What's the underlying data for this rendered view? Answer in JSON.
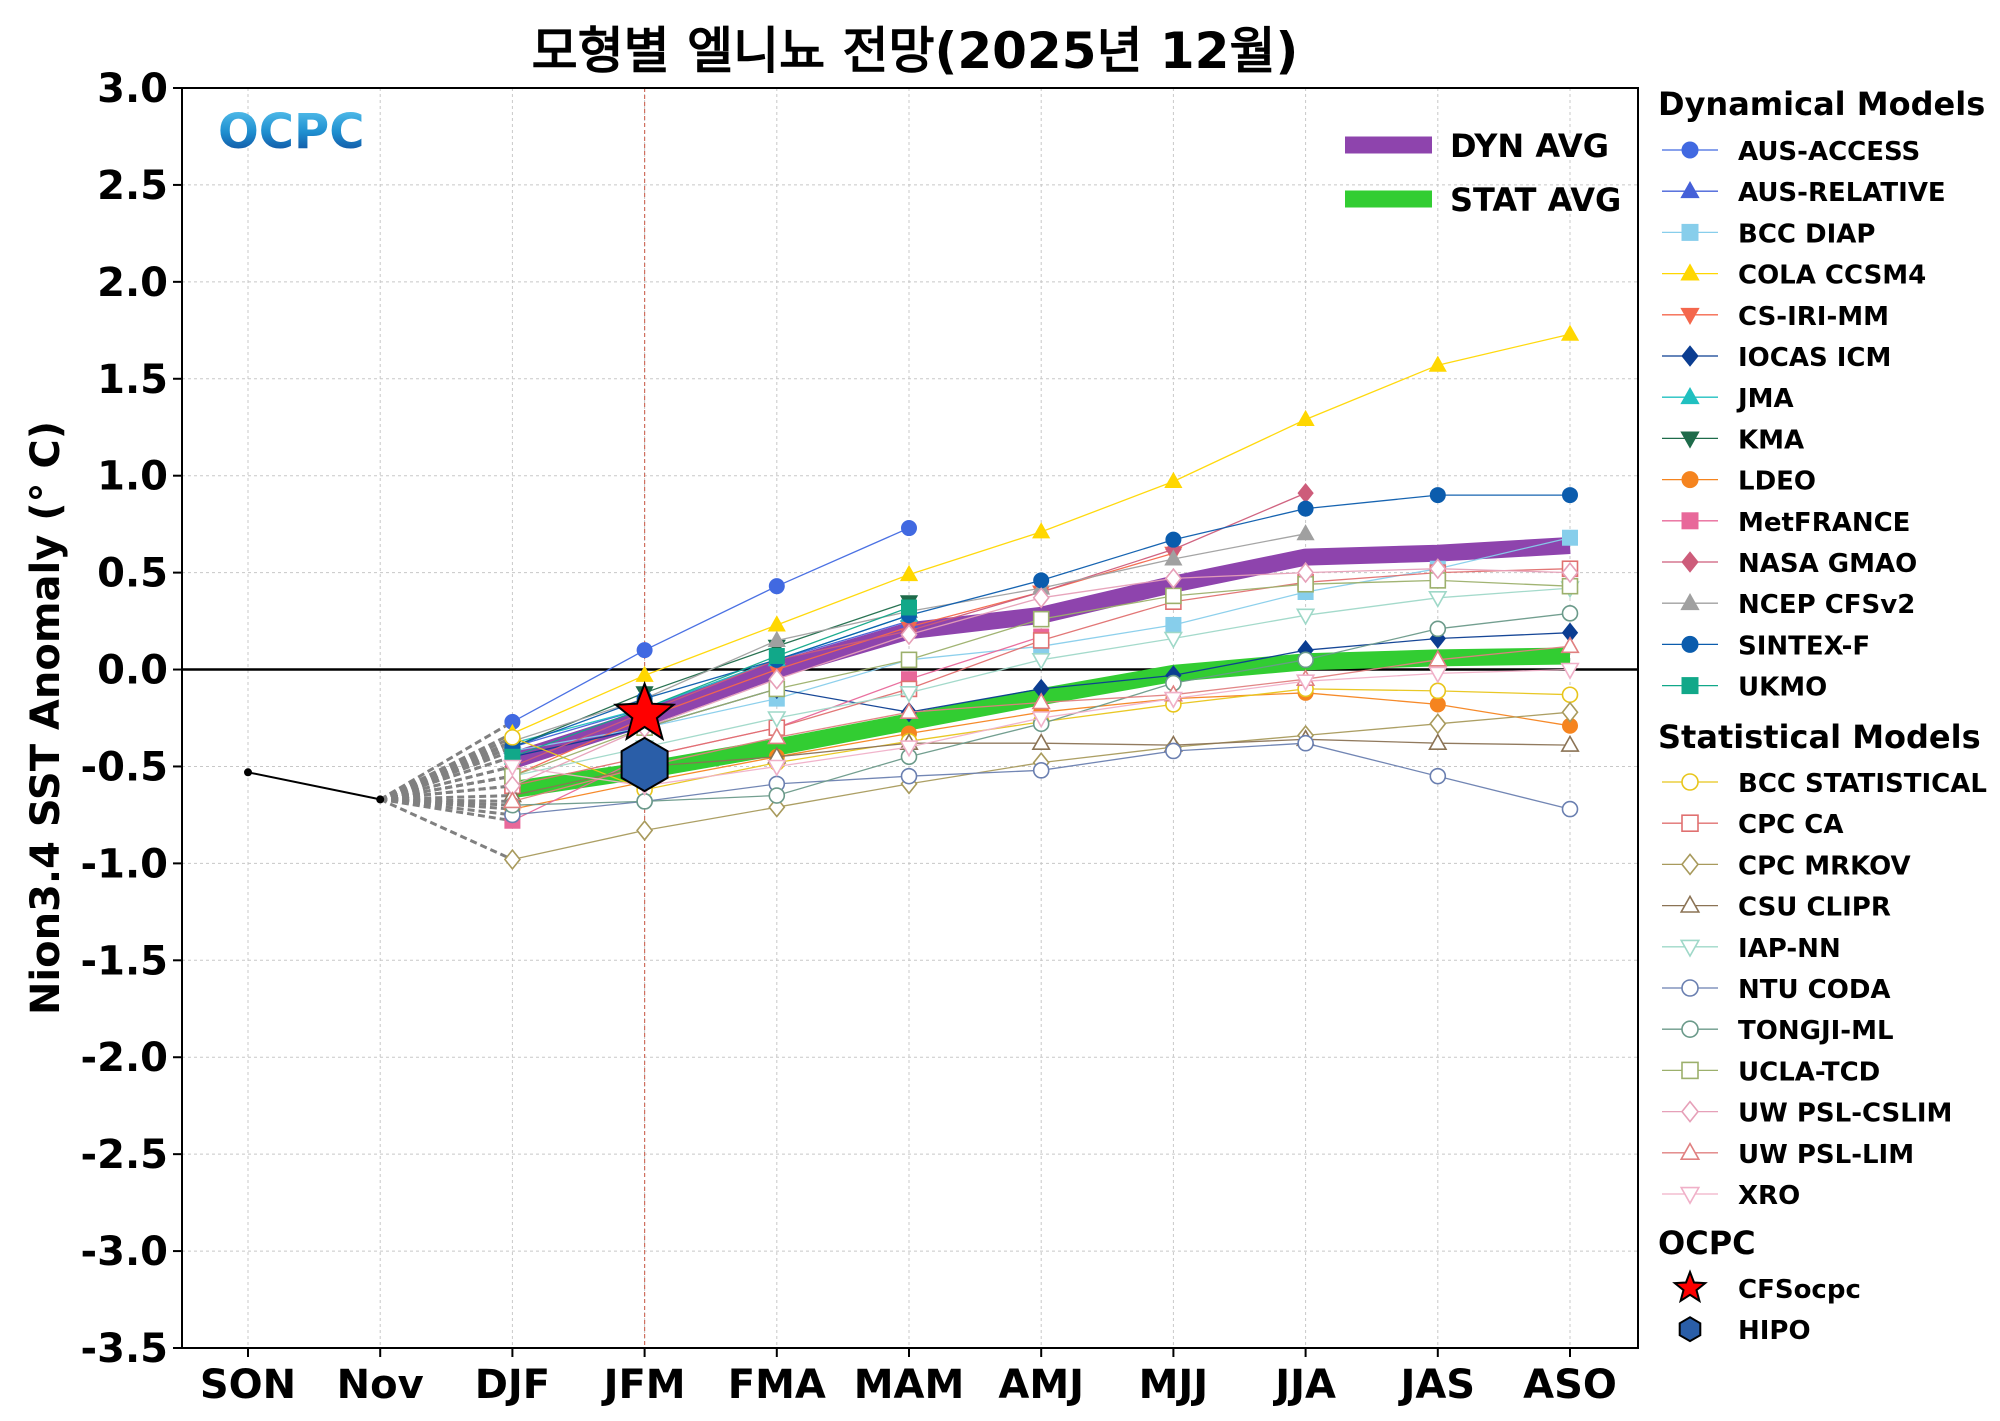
{
  "chart_data": {
    "type": "line",
    "title": "모형별 엘니뇨 전망(2025년 12월)",
    "ylabel": "Nion3.4 SST Anomaly (° C)",
    "xlabel": "",
    "ylim": [
      -3.5,
      3.0
    ],
    "yticks": [
      "3.0",
      "2.5",
      "2.0",
      "1.5",
      "1.0",
      "0.5",
      "0.0",
      "-0.5",
      "-1.0",
      "-1.5",
      "-2.0",
      "-2.5",
      "-3.0",
      "-3.5"
    ],
    "categories": [
      "SON",
      "Nov",
      "DJF",
      "JFM",
      "FMA",
      "MAM",
      "AMJ",
      "MJJ",
      "JJA",
      "JAS",
      "ASO"
    ],
    "grid": true,
    "logo": "OCPC",
    "observed": {
      "x": [
        "SON",
        "Nov"
      ],
      "values": [
        -0.53,
        -0.67
      ],
      "color": "#000000"
    },
    "groups": [
      {
        "title": "Dynamical Models",
        "series": [
          {
            "name": "AUS-ACCESS",
            "marker": "circle",
            "filled": true,
            "color": "#4169e1",
            "values": [
              -0.27,
              0.1,
              0.43,
              0.73
            ]
          },
          {
            "name": "AUS-RELATIVE",
            "marker": "triangle-up",
            "filled": true,
            "color": "#4560d8",
            "values": [
              -0.4,
              -0.2,
              0.05,
              0.25
            ]
          },
          {
            "name": "BCC DIAP",
            "marker": "square",
            "filled": true,
            "color": "#87ceeb",
            "values": [
              -0.42,
              -0.3,
              -0.15,
              0.05,
              0.12,
              0.23,
              0.4,
              0.52,
              0.68
            ]
          },
          {
            "name": "COLA CCSM4",
            "marker": "triangle-up",
            "filled": true,
            "color": "#ffd700",
            "values": [
              -0.33,
              -0.03,
              0.23,
              0.49,
              0.71,
              0.97,
              1.29,
              1.57,
              1.73
            ]
          },
          {
            "name": "CS-IRI-MM",
            "marker": "triangle-down",
            "filled": true,
            "color": "#f4674c",
            "values": [
              -0.55,
              -0.25,
              0.0,
              0.22,
              0.4,
              0.6
            ]
          },
          {
            "name": "IOCAS ICM",
            "marker": "diamond",
            "filled": true,
            "color": "#0b3d91",
            "values": [
              -0.45,
              -0.3,
              -0.1,
              -0.22,
              -0.1,
              -0.03,
              0.1,
              0.16,
              0.19
            ]
          },
          {
            "name": "JMA",
            "marker": "triangle-up",
            "filled": true,
            "color": "#20c0c0",
            "values": [
              -0.38,
              -0.2,
              0.05,
              0.28
            ]
          },
          {
            "name": "KMA",
            "marker": "triangle-down",
            "filled": true,
            "color": "#1e6b4a",
            "values": [
              -0.4,
              -0.12,
              0.12,
              0.35
            ]
          },
          {
            "name": "LDEO",
            "marker": "circle",
            "filled": true,
            "color": "#f5841f",
            "values": [
              -0.72,
              -0.58,
              -0.45,
              -0.33,
              -0.22,
              -0.15,
              -0.12,
              -0.18,
              -0.29
            ]
          },
          {
            "name": "MetFRANCE",
            "marker": "square",
            "filled": true,
            "color": "#e8689a",
            "values": [
              -0.78,
              -0.45,
              -0.3,
              -0.05,
              0.17
            ]
          },
          {
            "name": "NASA GMAO",
            "marker": "diamond",
            "filled": true,
            "color": "#cd5c7a",
            "values": [
              -0.5,
              -0.22,
              0.05,
              0.2,
              0.4,
              0.62,
              0.91
            ]
          },
          {
            "name": "NCEP CFSv2",
            "marker": "triangle-up",
            "filled": true,
            "color": "#a0a0a0",
            "values": [
              -0.37,
              -0.15,
              0.15,
              0.3,
              0.42,
              0.57,
              0.7
            ]
          },
          {
            "name": "SINTEX-F",
            "marker": "circle",
            "filled": true,
            "color": "#0b5cad",
            "values": [
              -0.4,
              -0.15,
              0.05,
              0.28,
              0.46,
              0.67,
              0.83,
              0.9,
              0.9
            ]
          },
          {
            "name": "UKMO",
            "marker": "square",
            "filled": true,
            "color": "#11a889",
            "values": [
              -0.45,
              -0.2,
              0.07,
              0.32
            ]
          }
        ]
      },
      {
        "title": "Statistical Models",
        "series": [
          {
            "name": "BCC STATISTICAL",
            "marker": "circle",
            "filled": false,
            "color": "#e8c51a",
            "values": [
              -0.35,
              -0.62,
              -0.48,
              -0.37,
              -0.27,
              -0.18,
              -0.1,
              -0.11,
              -0.13
            ]
          },
          {
            "name": "CPC CA",
            "marker": "square",
            "filled": false,
            "color": "#e07070",
            "values": [
              -0.6,
              -0.45,
              -0.3,
              -0.1,
              0.15,
              0.35,
              0.45,
              0.5,
              0.52
            ]
          },
          {
            "name": "CPC MRKOV",
            "marker": "diamond",
            "filled": false,
            "color": "#a89a5c",
            "values": [
              -0.98,
              -0.83,
              -0.71,
              -0.59,
              -0.48,
              -0.4,
              -0.34,
              -0.28,
              -0.22
            ]
          },
          {
            "name": "CSU CLIPR",
            "marker": "triangle-up",
            "filled": false,
            "color": "#8b7355",
            "values": [
              -0.65,
              -0.5,
              -0.45,
              -0.38,
              -0.38,
              -0.39,
              -0.36,
              -0.38,
              -0.39
            ]
          },
          {
            "name": "IAP-NN",
            "marker": "triangle-down",
            "filled": false,
            "color": "#9fd8c8",
            "values": [
              -0.55,
              -0.4,
              -0.25,
              -0.12,
              0.05,
              0.16,
              0.28,
              0.37,
              0.42
            ]
          },
          {
            "name": "NTU CODA",
            "marker": "circle",
            "filled": false,
            "color": "#6a7fb0",
            "values": [
              -0.75,
              -0.68,
              -0.59,
              -0.55,
              -0.52,
              -0.42,
              -0.38,
              -0.55,
              -0.72
            ]
          },
          {
            "name": "TONGJI-ML",
            "marker": "circle",
            "filled": false,
            "color": "#6b9a8a",
            "values": [
              -0.7,
              -0.68,
              -0.65,
              -0.45,
              -0.28,
              -0.07,
              0.05,
              0.21,
              0.29
            ]
          },
          {
            "name": "UCLA-TCD",
            "marker": "square",
            "filled": false,
            "color": "#9cb06c",
            "values": [
              -0.55,
              -0.3,
              -0.1,
              0.05,
              0.26,
              0.38,
              0.44,
              0.46,
              0.43
            ]
          },
          {
            "name": "UW PSL-CSLIM",
            "marker": "diamond",
            "filled": false,
            "color": "#e6a0b8",
            "values": [
              -0.6,
              -0.3,
              -0.05,
              0.18,
              0.37,
              0.47,
              0.5,
              0.52,
              0.5
            ]
          },
          {
            "name": "UW PSL-LIM",
            "marker": "triangle-up",
            "filled": false,
            "color": "#e08080",
            "values": [
              -0.68,
              -0.5,
              -0.35,
              -0.22,
              -0.17,
              -0.13,
              -0.05,
              0.05,
              0.12
            ]
          },
          {
            "name": "XRO",
            "marker": "triangle-down",
            "filled": false,
            "color": "#f0b0c8",
            "values": [
              -0.5,
              -0.6,
              -0.5,
              -0.4,
              -0.25,
              -0.15,
              -0.06,
              -0.02,
              0.0
            ]
          }
        ]
      },
      {
        "title": "OCPC",
        "series": [
          {
            "name": "CFSocpc",
            "marker": "star",
            "filled": true,
            "color": "#ff0000",
            "x": [
              "JFM"
            ],
            "values": [
              -0.23
            ]
          },
          {
            "name": "HIPO",
            "marker": "hexagon",
            "filled": true,
            "color": "#2a5ea8",
            "x": [
              "JFM"
            ],
            "values": [
              -0.49
            ]
          }
        ]
      }
    ],
    "averages": [
      {
        "name": "DYN AVG",
        "color": "#8e44ad",
        "values": [
          -0.47,
          -0.25,
          0.0,
          0.2,
          0.28,
          0.44,
          0.58,
          0.6,
          0.64
        ]
      },
      {
        "name": "STAT AVG",
        "color": "#32cd32",
        "values": [
          -0.62,
          -0.52,
          -0.4,
          -0.27,
          -0.14,
          -0.02,
          0.04,
          0.06,
          0.07
        ]
      }
    ]
  }
}
